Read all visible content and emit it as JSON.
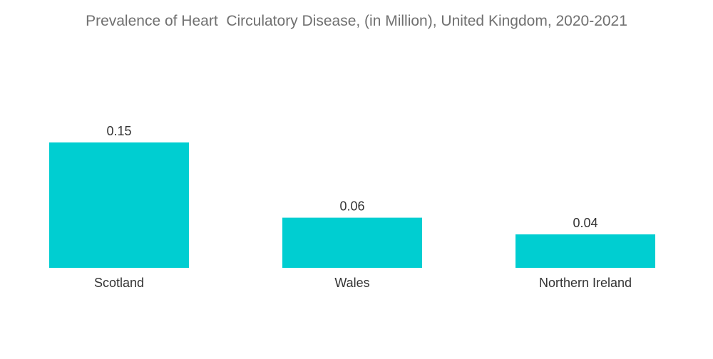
{
  "chart_data": {
    "type": "bar",
    "title": "Prevalence of Heart  Circulatory Disease, (in Million), United Kingdom, 2020-2021",
    "categories": [
      "Scotland",
      "Wales",
      "Northern Ireland"
    ],
    "values": [
      0.15,
      0.06,
      0.04
    ],
    "value_labels": [
      "0.15",
      "0.06",
      "0.04"
    ],
    "xlabel": "",
    "ylabel": "",
    "ylim": [
      0,
      0.15
    ],
    "grid": false,
    "legend": "none",
    "bar_color": "#00CED1"
  }
}
